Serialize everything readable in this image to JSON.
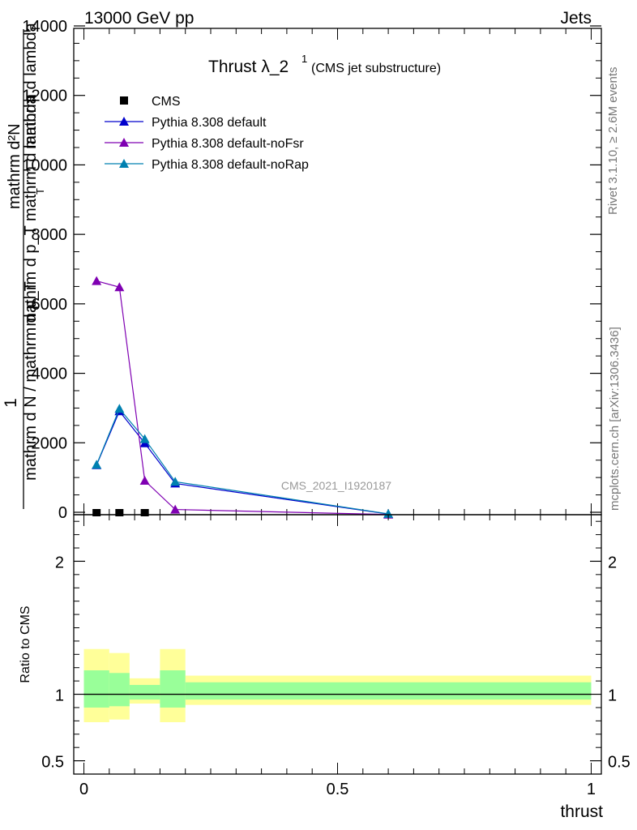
{
  "header": {
    "left": "13000 GeV pp",
    "right": "Jets"
  },
  "side_labels": {
    "rivet": "Rivet 3.1.10, ≥ 2.6M events",
    "mcplots": "mcplots.cern.ch [arXiv:1306.3436]"
  },
  "chart_data": [
    {
      "type": "line",
      "title_main": "Thrust λ_2",
      "title_sup": "1",
      "title_sub": "(CMS jet substructure)",
      "watermark": "CMS_2021_I1920187",
      "ylabel_top": "mathrm d²N",
      "ylabel_top_frac": "1",
      "ylabel_mid": "mathrm d p_T mathrm d lambda",
      "ylabel_bottom": "mathrm d N / mathrm d p_T",
      "ylabel_overlap": "mathrm d lambda",
      "ylabel_sub": "T",
      "ylim": [
        0,
        14000
      ],
      "xlim": [
        -0.02,
        1.02
      ],
      "yticks": [
        {
          "v": 0,
          "label": "0"
        },
        {
          "v": 2000,
          "label": "2000"
        },
        {
          "v": 4000,
          "label": "4000"
        },
        {
          "v": 6000,
          "label": "6000"
        },
        {
          "v": 8000,
          "label": "8000"
        },
        {
          "v": 10000,
          "label": "10000"
        },
        {
          "v": 12000,
          "label": "12000"
        },
        {
          "v": 14000,
          "label": "14000"
        }
      ],
      "legend": [
        {
          "name": "CMS",
          "marker": "square",
          "color": "#000000"
        },
        {
          "name": "Pythia 8.308 default",
          "marker": "triangle",
          "color": "#0000cc"
        },
        {
          "name": "Pythia 8.308 default-noFsr",
          "marker": "triangle",
          "color": "#7f00b2"
        },
        {
          "name": "Pythia 8.308 default-noRap",
          "marker": "triangle",
          "color": "#0080b0"
        }
      ],
      "data_points": {
        "name": "CMS",
        "x": [
          0.025,
          0.07,
          0.12
        ],
        "y": [
          0,
          0,
          0
        ]
      },
      "series": [
        {
          "name": "Pythia 8.308 default",
          "color": "#0000cc",
          "x": [
            0.025,
            0.07,
            0.12,
            0.18,
            0.6
          ],
          "y": [
            1430,
            2980,
            2060,
            900,
            20
          ]
        },
        {
          "name": "Pythia 8.308 default-noFsr",
          "color": "#7f00b2",
          "x": [
            0.025,
            0.07,
            0.12,
            0.18,
            0.6
          ],
          "y": [
            6730,
            6550,
            980,
            150,
            5
          ]
        },
        {
          "name": "Pythia 8.308 default-noRap",
          "color": "#0080b0",
          "x": [
            0.025,
            0.07,
            0.12,
            0.18,
            0.6
          ],
          "y": [
            1440,
            3050,
            2180,
            950,
            25
          ]
        }
      ]
    },
    {
      "type": "area",
      "ylabel": "Ratio to CMS",
      "xlabel": "thrust",
      "ylim": [
        0.4,
        2.35
      ],
      "xlim": [
        -0.02,
        1.02
      ],
      "xticks": [
        {
          "v": 0,
          "label": "0"
        },
        {
          "v": 0.5,
          "label": "0.5"
        },
        {
          "v": 1,
          "label": "1"
        }
      ],
      "yticks": [
        {
          "v": 0.5,
          "label": "0.5"
        },
        {
          "v": 1,
          "label": "1"
        },
        {
          "v": 2,
          "label": "2"
        }
      ],
      "bands": [
        {
          "x0": 0.0,
          "x1": 0.05,
          "yellow": [
            0.79,
            1.34
          ],
          "green": [
            0.9,
            1.18
          ]
        },
        {
          "x0": 0.05,
          "x1": 0.09,
          "yellow": [
            0.81,
            1.31
          ],
          "green": [
            0.91,
            1.16
          ]
        },
        {
          "x0": 0.09,
          "x1": 0.15,
          "yellow": [
            0.93,
            1.12
          ],
          "green": [
            0.96,
            1.07
          ]
        },
        {
          "x0": 0.15,
          "x1": 0.2,
          "yellow": [
            0.79,
            1.34
          ],
          "green": [
            0.9,
            1.18
          ]
        },
        {
          "x0": 0.2,
          "x1": 1.0,
          "yellow": [
            0.92,
            1.14
          ],
          "green": [
            0.96,
            1.09
          ]
        }
      ],
      "reference": 1
    }
  ]
}
